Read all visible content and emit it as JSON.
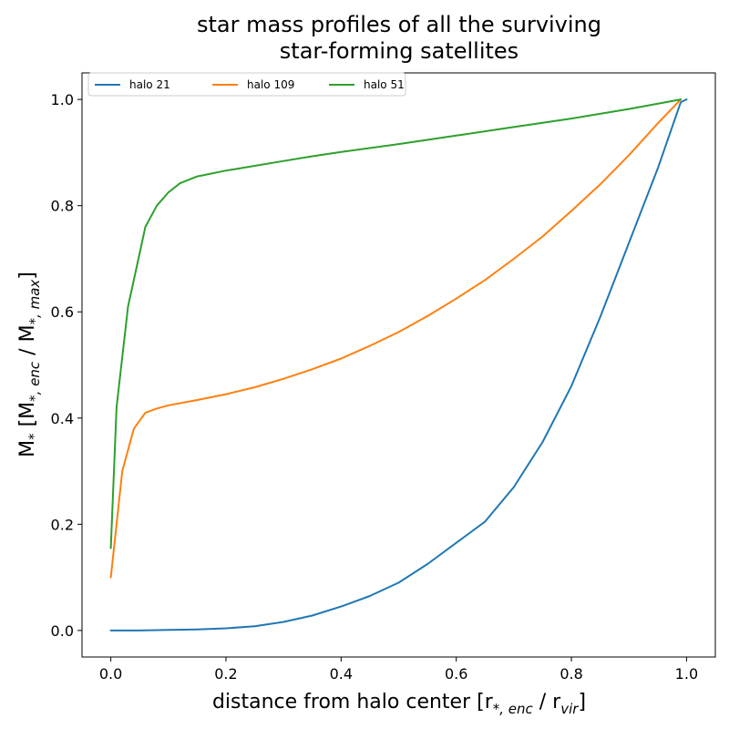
{
  "chart_data": {
    "type": "line",
    "title_lines": [
      "star mass profiles of all the surviving",
      "star-forming satellites"
    ],
    "xlabel": {
      "main": "distance from halo center [r",
      "sub1": "*, enc",
      "mid": " / r",
      "sub2": "vir",
      "end": "]"
    },
    "ylabel": {
      "main": "M",
      "sup": "*",
      "mid": " [M",
      "sub1": "*, enc",
      "mid2": " / M",
      "sub2": "*, max",
      "end": "]"
    },
    "xlim": [
      -0.05,
      1.05
    ],
    "ylim": [
      -0.05,
      1.05
    ],
    "xticks": [
      0.0,
      0.2,
      0.4,
      0.6,
      0.8,
      1.0
    ],
    "yticks": [
      0.0,
      0.2,
      0.4,
      0.6,
      0.8,
      1.0
    ],
    "xtick_labels": [
      "0.0",
      "0.2",
      "0.4",
      "0.6",
      "0.8",
      "1.0"
    ],
    "ytick_labels": [
      "0.0",
      "0.2",
      "0.4",
      "0.6",
      "0.8",
      "1.0"
    ],
    "grid": false,
    "legend_position": "top-left",
    "series": [
      {
        "name": "halo 21",
        "color": "#1f77b4",
        "points": [
          [
            0.0,
            0.0
          ],
          [
            0.05,
            0.0
          ],
          [
            0.1,
            0.001
          ],
          [
            0.15,
            0.002
          ],
          [
            0.2,
            0.004
          ],
          [
            0.25,
            0.008
          ],
          [
            0.3,
            0.016
          ],
          [
            0.35,
            0.028
          ],
          [
            0.4,
            0.045
          ],
          [
            0.45,
            0.065
          ],
          [
            0.5,
            0.09
          ],
          [
            0.55,
            0.125
          ],
          [
            0.6,
            0.165
          ],
          [
            0.65,
            0.205
          ],
          [
            0.7,
            0.27
          ],
          [
            0.75,
            0.355
          ],
          [
            0.8,
            0.46
          ],
          [
            0.85,
            0.59
          ],
          [
            0.9,
            0.73
          ],
          [
            0.95,
            0.87
          ],
          [
            0.99,
            0.995
          ],
          [
            1.0,
            1.0
          ]
        ]
      },
      {
        "name": "halo 109",
        "color": "#ff7f0e",
        "points": [
          [
            0.0,
            0.1
          ],
          [
            0.02,
            0.3
          ],
          [
            0.04,
            0.38
          ],
          [
            0.06,
            0.41
          ],
          [
            0.08,
            0.418
          ],
          [
            0.1,
            0.424
          ],
          [
            0.15,
            0.434
          ],
          [
            0.2,
            0.445
          ],
          [
            0.25,
            0.458
          ],
          [
            0.3,
            0.474
          ],
          [
            0.35,
            0.492
          ],
          [
            0.4,
            0.512
          ],
          [
            0.45,
            0.536
          ],
          [
            0.5,
            0.562
          ],
          [
            0.55,
            0.592
          ],
          [
            0.6,
            0.625
          ],
          [
            0.65,
            0.66
          ],
          [
            0.7,
            0.7
          ],
          [
            0.75,
            0.742
          ],
          [
            0.8,
            0.79
          ],
          [
            0.85,
            0.84
          ],
          [
            0.9,
            0.895
          ],
          [
            0.95,
            0.955
          ],
          [
            0.99,
            1.0
          ]
        ]
      },
      {
        "name": "halo 51",
        "color": "#2ca02c",
        "points": [
          [
            0.0,
            0.155
          ],
          [
            0.01,
            0.42
          ],
          [
            0.03,
            0.61
          ],
          [
            0.05,
            0.71
          ],
          [
            0.06,
            0.76
          ],
          [
            0.08,
            0.8
          ],
          [
            0.1,
            0.825
          ],
          [
            0.12,
            0.842
          ],
          [
            0.15,
            0.855
          ],
          [
            0.2,
            0.866
          ],
          [
            0.25,
            0.875
          ],
          [
            0.3,
            0.884
          ],
          [
            0.35,
            0.893
          ],
          [
            0.4,
            0.901
          ],
          [
            0.5,
            0.916
          ],
          [
            0.6,
            0.932
          ],
          [
            0.7,
            0.948
          ],
          [
            0.8,
            0.964
          ],
          [
            0.9,
            0.982
          ],
          [
            0.99,
            1.0
          ]
        ]
      }
    ]
  }
}
